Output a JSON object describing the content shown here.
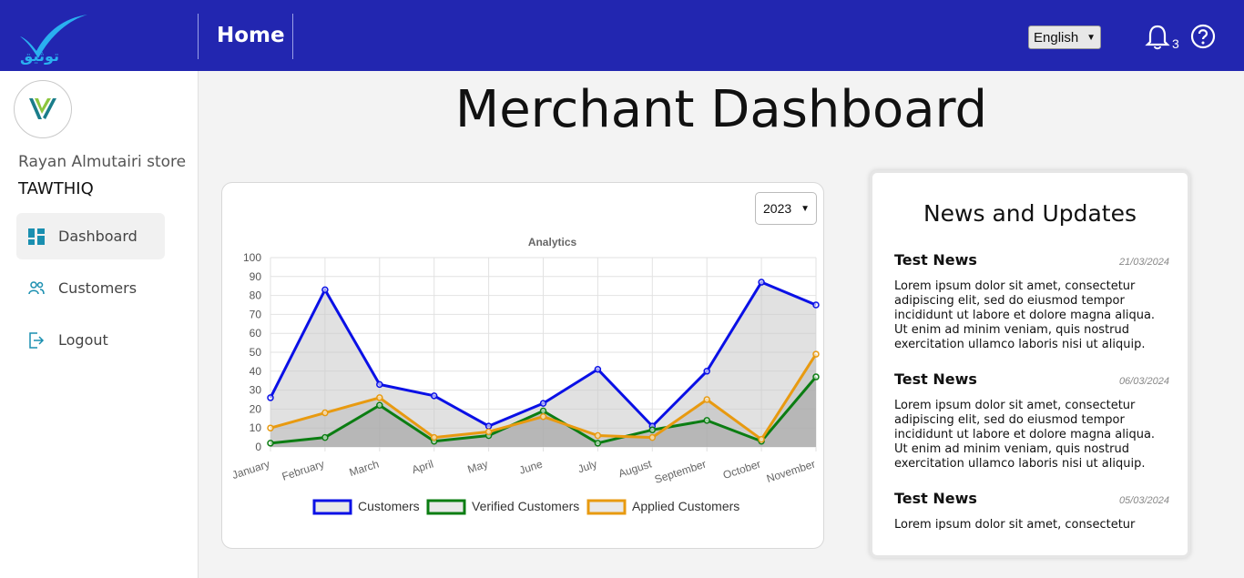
{
  "header": {
    "logo_text": "توثيق",
    "home_label": "Home",
    "language": "English",
    "notification_count": "3"
  },
  "sidebar": {
    "store_name": "Rayan Almutairi store",
    "brand": "TAWTHIQ",
    "items": [
      {
        "label": "Dashboard",
        "icon": "dashboard-icon",
        "active": true
      },
      {
        "label": "Customers",
        "icon": "users-icon",
        "active": false
      },
      {
        "label": "Logout",
        "icon": "logout-icon",
        "active": false
      }
    ]
  },
  "main": {
    "title": "Merchant Dashboard",
    "year": "2023"
  },
  "chart_data": {
    "type": "line",
    "title": "Analytics",
    "categories": [
      "January",
      "February",
      "March",
      "April",
      "May",
      "June",
      "July",
      "August",
      "September",
      "October",
      "November"
    ],
    "ylim": [
      0,
      100
    ],
    "yticks": [
      0,
      10,
      20,
      30,
      40,
      50,
      60,
      70,
      80,
      90,
      100
    ],
    "grid": true,
    "legend_position": "bottom",
    "series": [
      {
        "name": "Customers",
        "color": "#0a10e6",
        "values": [
          26,
          83,
          33,
          27,
          11,
          23,
          41,
          11,
          40,
          87,
          75
        ]
      },
      {
        "name": "Verified Customers",
        "color": "#0b7d12",
        "values": [
          2,
          5,
          22,
          3,
          6,
          19,
          2,
          9,
          14,
          3,
          37
        ]
      },
      {
        "name": "Applied Customers",
        "color": "#e89a10",
        "values": [
          10,
          18,
          26,
          5,
          8,
          16,
          6,
          5,
          25,
          4,
          49
        ]
      }
    ]
  },
  "news": {
    "title": "News and Updates",
    "items": [
      {
        "heading": "Test News",
        "date": "21/03/2024",
        "body": "Lorem ipsum dolor sit amet, consectetur adipiscing elit, sed do eiusmod tempor incididunt ut labore et dolore magna aliqua. Ut enim ad minim veniam, quis nostrud exercitation ullamco laboris nisi ut aliquip."
      },
      {
        "heading": "Test News",
        "date": "06/03/2024",
        "body": "Lorem ipsum dolor sit amet, consectetur adipiscing elit, sed do eiusmod tempor incididunt ut labore et dolore magna aliqua. Ut enim ad minim veniam, quis nostrud exercitation ullamco laboris nisi ut aliquip."
      },
      {
        "heading": "Test News",
        "date": "05/03/2024",
        "body": "Lorem ipsum dolor sit amet, consectetur adipiscing elit, sed do eiusmod tempor incididunt ut labore et dolore magna aliqua. Ut enim ad minim veniam, quis nostrud exercitation ullamco laboris nisi ut aliquip."
      }
    ]
  }
}
